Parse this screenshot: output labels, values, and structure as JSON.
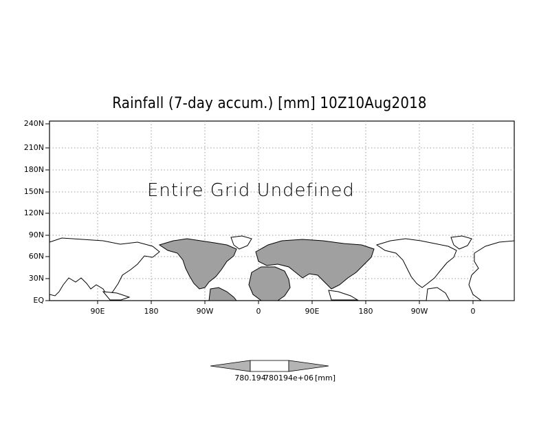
{
  "title": "Rainfall (7-day accum.) [mm] 10Z10Aug2018",
  "message": "Entire Grid Undefined",
  "y_axis_labels": [
    "EQ",
    "30N",
    "60N",
    "90N",
    "120N",
    "150N",
    "180N",
    "210N",
    "240N"
  ],
  "x_axis_labels": [
    "90E",
    "180",
    "90W",
    "0",
    "90E",
    "180",
    "90W",
    "0"
  ],
  "colorbar": {
    "min_label": "780.194",
    "max_label": "780194e+06",
    "unit_label": "[mm]"
  },
  "colors": {
    "land_fill": "#a0a0a0",
    "coast": "#000000",
    "grid": "#9a9a9a",
    "colorbar_arrow": "#b4b4b4",
    "colorbar_middle": "#ffffff"
  }
}
